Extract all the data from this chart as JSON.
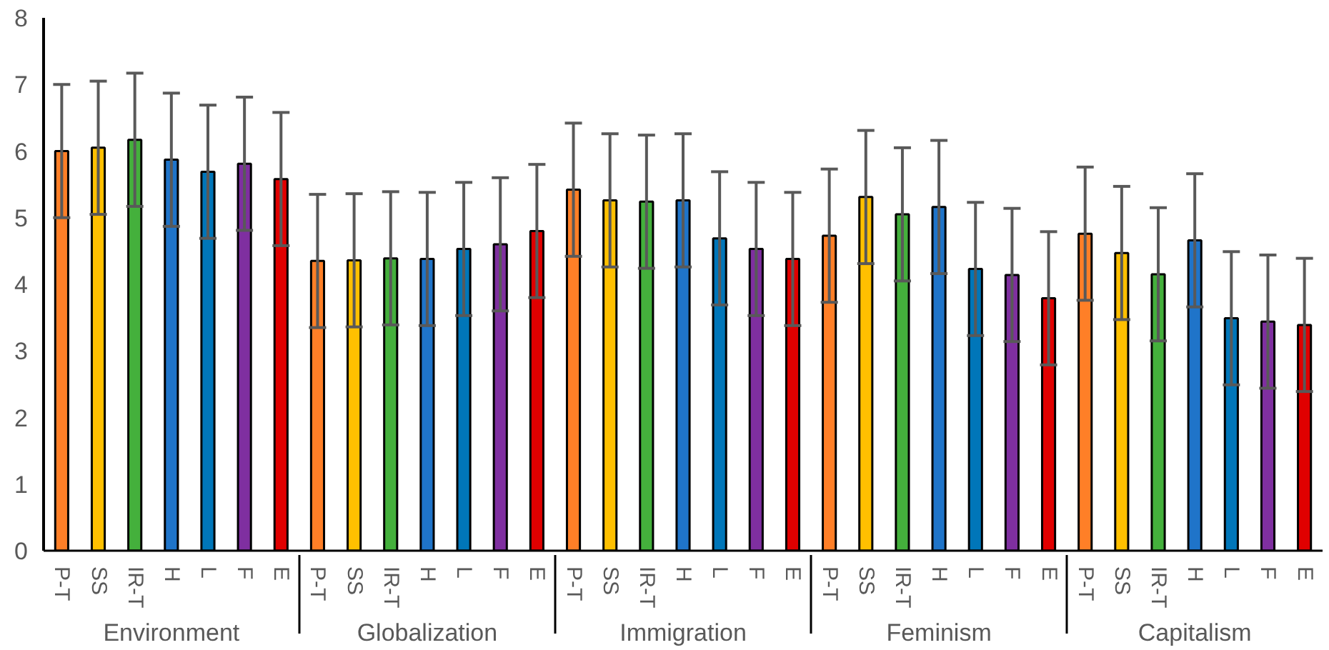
{
  "chart_data": {
    "type": "bar",
    "categories": [
      "Environment",
      "Globalization",
      "Immigration",
      "Feminism",
      "Capitalism"
    ],
    "series": [
      {
        "name": "P-T",
        "color": "#ff7f27",
        "values": [
          6.0,
          4.35,
          5.42,
          4.73,
          4.76
        ],
        "errors": [
          1.0,
          1.0,
          1.0,
          1.0,
          1.0
        ]
      },
      {
        "name": "SS",
        "color": "#ffc000",
        "values": [
          6.05,
          4.36,
          5.26,
          5.31,
          4.47
        ],
        "errors": [
          1.0,
          1.0,
          1.0,
          1.0,
          1.0
        ]
      },
      {
        "name": "IR-T",
        "color": "#44b03c",
        "values": [
          6.17,
          4.39,
          5.24,
          5.05,
          4.15
        ],
        "errors": [
          1.0,
          1.0,
          1.0,
          1.0,
          1.0
        ]
      },
      {
        "name": "H",
        "color": "#1f74c9",
        "values": [
          5.87,
          4.38,
          5.26,
          5.16,
          4.66
        ],
        "errors": [
          1.0,
          1.0,
          1.0,
          1.0,
          1.0
        ]
      },
      {
        "name": "L",
        "color": "#0076b9",
        "values": [
          5.69,
          4.53,
          4.69,
          4.23,
          3.49
        ],
        "errors": [
          1.0,
          1.0,
          1.0,
          1.0,
          1.0
        ]
      },
      {
        "name": "F",
        "color": "#7f2fa0",
        "values": [
          5.81,
          4.6,
          4.53,
          4.14,
          3.44
        ],
        "errors": [
          1.0,
          1.0,
          1.0,
          1.0,
          1.0
        ]
      },
      {
        "name": "E",
        "color": "#e00000",
        "values": [
          5.58,
          4.8,
          4.38,
          3.79,
          3.39
        ],
        "errors": [
          1.0,
          1.0,
          1.0,
          1.0,
          1.0
        ]
      }
    ],
    "ylim": [
      0,
      8
    ],
    "yticks": [
      0,
      1,
      2,
      3,
      4,
      5,
      6,
      7,
      8
    ],
    "grid": false
  }
}
